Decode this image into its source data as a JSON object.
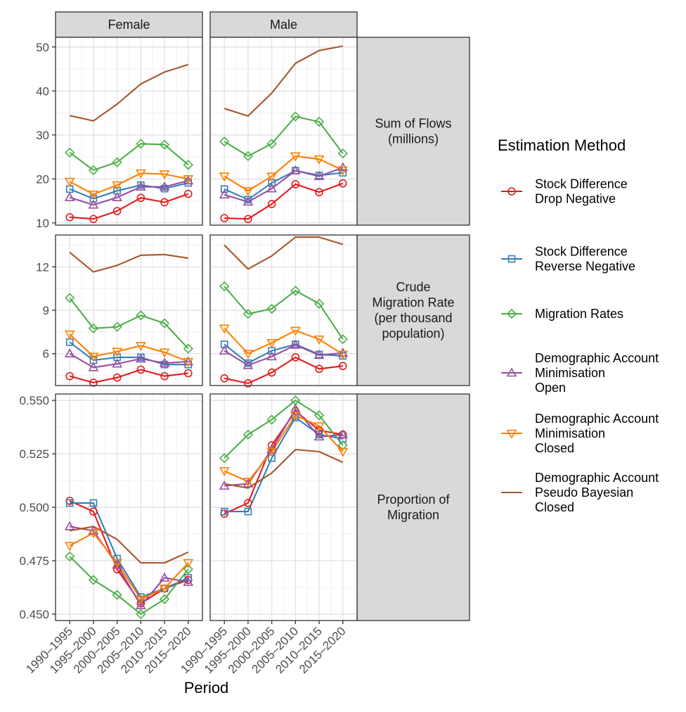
{
  "chart_data": {
    "type": "line",
    "x": [
      "1990–1995",
      "1995–2000",
      "2000–2005",
      "2005–2010",
      "2010–2015",
      "2015–2020"
    ],
    "xlabel": "Period",
    "columns": [
      "Female",
      "Male"
    ],
    "rows": [
      {
        "label": "Sum of Flows\n(millions)",
        "ylim": [
          9.5,
          52.2
        ],
        "ticks": [
          10,
          20,
          30,
          40,
          50
        ],
        "tick_labels": [
          "10",
          "20",
          "30",
          "40",
          "50"
        ]
      },
      {
        "label": "Crude\nMigration Rate\n(per thousand\npopulation)",
        "ylim": [
          3.8,
          14.2
        ],
        "ticks": [
          6,
          9,
          12
        ],
        "tick_labels": [
          "6",
          "9",
          "12"
        ]
      },
      {
        "label": "Proportion of\nMigration",
        "ylim": [
          0.447,
          0.553
        ],
        "ticks": [
          0.45,
          0.475,
          0.5,
          0.525,
          0.55
        ],
        "tick_labels": [
          "0.450",
          "0.475",
          "0.500",
          "0.525",
          "0.550"
        ]
      }
    ],
    "legend_title": "Estimation Method",
    "legend_placement": "right",
    "series": [
      {
        "name": "Stock Difference\nDrop Negative",
        "color": "#E41A1C",
        "marker": "circle",
        "values": {
          "Female": [
            [
              11.3,
              10.9,
              12.7,
              15.7,
              14.7,
              16.6
            ],
            [
              4.45,
              4.0,
              4.35,
              4.9,
              4.45,
              4.65
            ],
            [
              0.503,
              0.498,
              0.471,
              0.455,
              0.462,
              0.466
            ]
          ],
          "Male": [
            [
              11.1,
              10.9,
              14.3,
              18.8,
              17.0,
              19.0
            ],
            [
              4.3,
              3.95,
              4.7,
              5.75,
              4.95,
              5.15
            ],
            [
              0.497,
              0.502,
              0.529,
              0.545,
              0.536,
              0.534
            ]
          ]
        }
      },
      {
        "name": "Stock Difference\nReverse Negative",
        "color": "#377EB8",
        "marker": "square",
        "values": {
          "Female": [
            [
              17.7,
              15.5,
              17.3,
              18.6,
              17.8,
              19.1
            ],
            [
              6.8,
              5.55,
              5.75,
              5.75,
              5.25,
              5.25
            ],
            [
              0.502,
              0.502,
              0.476,
              0.458,
              0.462,
              0.467
            ]
          ],
          "Male": [
            [
              17.7,
              15.3,
              19.1,
              21.9,
              20.8,
              21.4
            ],
            [
              6.65,
              5.35,
              6.2,
              6.65,
              5.95,
              5.85
            ],
            [
              0.498,
              0.498,
              0.523,
              0.542,
              0.534,
              0.532
            ]
          ]
        }
      },
      {
        "name": "Migration Rates",
        "color": "#4DAF4A",
        "marker": "diamond",
        "values": {
          "Female": [
            [
              26.0,
              22.0,
              23.8,
              28.0,
              27.8,
              23.2
            ],
            [
              9.85,
              7.75,
              7.85,
              8.65,
              8.1,
              6.35
            ],
            [
              0.477,
              0.466,
              0.459,
              0.45,
              0.457,
              0.471
            ]
          ],
          "Male": [
            [
              28.5,
              25.2,
              28.0,
              34.2,
              33.0,
              25.8
            ],
            [
              10.65,
              8.75,
              9.1,
              10.35,
              9.45,
              7.0
            ],
            [
              0.523,
              0.534,
              0.541,
              0.55,
              0.543,
              0.529
            ]
          ]
        }
      },
      {
        "name": "Demographic Account\nMinimisation\nOpen",
        "color": "#984EA3",
        "marker": "triangle-up",
        "values": {
          "Female": [
            [
              15.8,
              14.1,
              15.8,
              18.2,
              18.2,
              19.6
            ],
            [
              6.0,
              5.05,
              5.3,
              5.65,
              5.35,
              5.45
            ],
            [
              0.491,
              0.489,
              0.473,
              0.454,
              0.467,
              0.465
            ]
          ],
          "Male": [
            [
              16.4,
              14.8,
              17.8,
              21.9,
              20.6,
              22.6
            ],
            [
              6.2,
              5.2,
              5.8,
              6.6,
              5.9,
              6.05
            ],
            [
              0.51,
              0.511,
              0.527,
              0.546,
              0.533,
              0.534
            ]
          ]
        }
      },
      {
        "name": "Demographic Account\nMinimisation\nClosed",
        "color": "#FF7F00",
        "marker": "triangle-down",
        "values": {
          "Female": [
            [
              19.4,
              16.5,
              18.6,
              21.3,
              21.1,
              20.0
            ],
            [
              7.35,
              5.8,
              6.15,
              6.55,
              6.1,
              5.45
            ],
            [
              0.482,
              0.488,
              0.474,
              0.457,
              0.462,
              0.474
            ]
          ],
          "Male": [
            [
              20.6,
              17.3,
              20.6,
              25.2,
              24.5,
              22.0
            ],
            [
              7.75,
              6.0,
              6.75,
              7.6,
              7.0,
              5.95
            ],
            [
              0.517,
              0.512,
              0.526,
              0.543,
              0.538,
              0.526
            ]
          ]
        }
      },
      {
        "name": "Demographic Account\nPseudo Bayesian\nClosed",
        "color": "#A65628",
        "marker": "none",
        "values": {
          "Female": [
            [
              34.4,
              33.2,
              37.0,
              41.6,
              44.3,
              46.0
            ],
            [
              13.0,
              11.65,
              12.1,
              12.8,
              12.85,
              12.6
            ],
            [
              0.489,
              0.491,
              0.485,
              0.474,
              0.474,
              0.479
            ]
          ],
          "Male": [
            [
              36.0,
              34.3,
              39.5,
              46.3,
              49.2,
              50.2
            ],
            [
              13.5,
              11.85,
              12.75,
              14.05,
              14.05,
              13.55
            ],
            [
              0.511,
              0.509,
              0.516,
              0.527,
              0.526,
              0.521
            ]
          ]
        }
      }
    ]
  }
}
